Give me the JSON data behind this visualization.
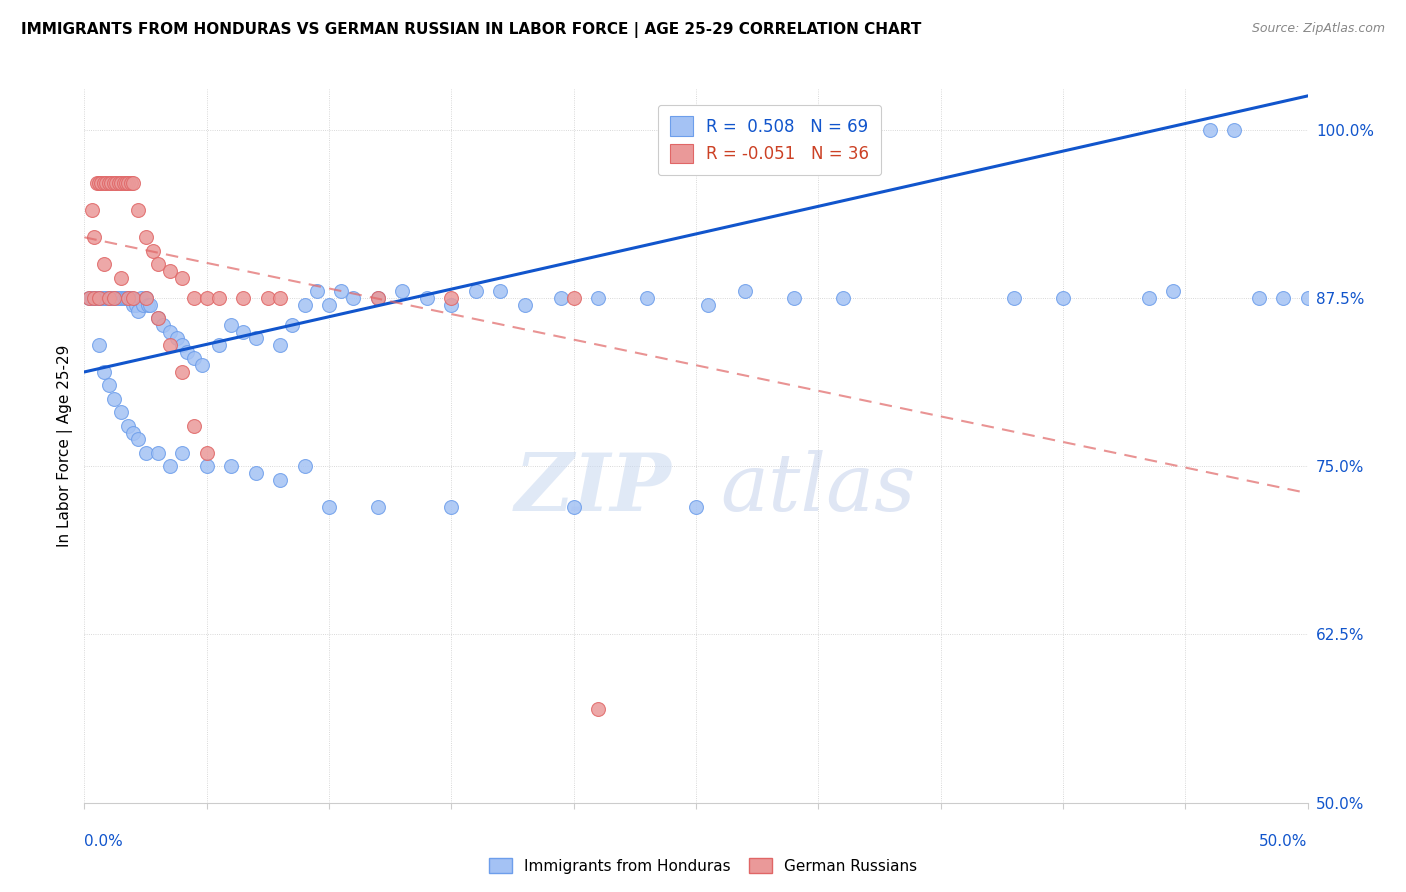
{
  "title": "IMMIGRANTS FROM HONDURAS VS GERMAN RUSSIAN IN LABOR FORCE | AGE 25-29 CORRELATION CHART",
  "source": "Source: ZipAtlas.com",
  "ylabel": "In Labor Force | Age 25-29",
  "ylabel_ticks": [
    "100.0%",
    "87.5%",
    "75.0%",
    "62.5%",
    "50.0%"
  ],
  "ylabel_vals": [
    1.0,
    0.875,
    0.75,
    0.625,
    0.5
  ],
  "xmin": 0.0,
  "xmax": 0.5,
  "ymin": 0.5,
  "ymax": 1.03,
  "blue_R": "0.508",
  "blue_N": "69",
  "pink_R": "-0.051",
  "pink_N": "36",
  "blue_color": "#a4c2f4",
  "pink_color": "#ea9999",
  "blue_edge_color": "#6d9eeb",
  "pink_edge_color": "#e06666",
  "blue_line_color": "#1155cc",
  "pink_line_color": "#e06666",
  "watermark_zip": "ZIP",
  "watermark_atlas": "atlas",
  "legend_label_blue": "Immigrants from Honduras",
  "legend_label_pink": "German Russians",
  "blue_scatter_x": [
    0.002,
    0.003,
    0.004,
    0.005,
    0.006,
    0.007,
    0.008,
    0.009,
    0.01,
    0.011,
    0.012,
    0.013,
    0.014,
    0.015,
    0.016,
    0.017,
    0.018,
    0.019,
    0.02,
    0.021,
    0.022,
    0.023,
    0.024,
    0.025,
    0.026,
    0.027,
    0.03,
    0.032,
    0.035,
    0.038,
    0.04,
    0.042,
    0.045,
    0.048,
    0.055,
    0.06,
    0.065,
    0.07,
    0.08,
    0.085,
    0.09,
    0.095,
    0.1,
    0.105,
    0.11,
    0.12,
    0.13,
    0.14,
    0.15,
    0.16,
    0.17,
    0.18,
    0.195,
    0.21,
    0.23,
    0.255,
    0.27,
    0.29,
    0.31,
    0.38,
    0.4,
    0.435,
    0.445,
    0.46,
    0.47,
    0.48,
    0.49,
    0.5
  ],
  "blue_scatter_y": [
    0.875,
    0.875,
    0.875,
    0.875,
    0.875,
    0.875,
    0.875,
    0.875,
    0.875,
    0.875,
    0.875,
    0.875,
    0.875,
    0.875,
    0.875,
    0.875,
    0.875,
    0.875,
    0.87,
    0.87,
    0.865,
    0.875,
    0.87,
    0.875,
    0.87,
    0.87,
    0.86,
    0.855,
    0.85,
    0.845,
    0.84,
    0.835,
    0.83,
    0.825,
    0.84,
    0.855,
    0.85,
    0.845,
    0.84,
    0.855,
    0.87,
    0.88,
    0.87,
    0.88,
    0.875,
    0.875,
    0.88,
    0.875,
    0.87,
    0.88,
    0.88,
    0.87,
    0.875,
    0.875,
    0.875,
    0.87,
    0.88,
    0.875,
    0.875,
    0.875,
    0.875,
    0.875,
    0.88,
    1.0,
    1.0,
    0.875,
    0.875,
    0.875
  ],
  "blue_scatter_x2": [
    0.006,
    0.008,
    0.01,
    0.012,
    0.015,
    0.018,
    0.02,
    0.022,
    0.025,
    0.03,
    0.035,
    0.04,
    0.05,
    0.06,
    0.07,
    0.08,
    0.09,
    0.1,
    0.12,
    0.15,
    0.2,
    0.25
  ],
  "blue_scatter_y2": [
    0.84,
    0.82,
    0.81,
    0.8,
    0.79,
    0.78,
    0.775,
    0.77,
    0.76,
    0.76,
    0.75,
    0.76,
    0.75,
    0.75,
    0.745,
    0.74,
    0.75,
    0.72,
    0.72,
    0.72,
    0.72,
    0.72
  ],
  "pink_scatter_x": [
    0.002,
    0.003,
    0.004,
    0.005,
    0.006,
    0.007,
    0.008,
    0.009,
    0.01,
    0.011,
    0.012,
    0.013,
    0.014,
    0.015,
    0.016,
    0.017,
    0.018,
    0.019,
    0.02,
    0.022,
    0.025,
    0.028,
    0.03,
    0.035,
    0.04,
    0.045,
    0.05,
    0.055,
    0.065,
    0.075,
    0.08,
    0.12,
    0.15,
    0.2,
    0.21
  ],
  "pink_scatter_y": [
    0.875,
    0.94,
    0.92,
    0.96,
    0.96,
    0.96,
    0.96,
    0.96,
    0.96,
    0.96,
    0.96,
    0.96,
    0.96,
    0.96,
    0.96,
    0.96,
    0.96,
    0.96,
    0.96,
    0.94,
    0.92,
    0.91,
    0.9,
    0.895,
    0.89,
    0.875,
    0.875,
    0.875,
    0.875,
    0.875,
    0.875,
    0.875,
    0.875,
    0.875,
    0.57
  ],
  "pink_scatter_x2": [
    0.004,
    0.006,
    0.008,
    0.01,
    0.012,
    0.015,
    0.018,
    0.02,
    0.025,
    0.03,
    0.035,
    0.04,
    0.045,
    0.05
  ],
  "pink_scatter_y2": [
    0.875,
    0.875,
    0.9,
    0.875,
    0.875,
    0.89,
    0.875,
    0.875,
    0.875,
    0.86,
    0.84,
    0.82,
    0.78,
    0.76
  ],
  "blue_trend_x": [
    0.0,
    0.5
  ],
  "blue_trend_y": [
    0.82,
    1.025
  ],
  "pink_trend_x": [
    0.0,
    0.5
  ],
  "pink_trend_y": [
    0.92,
    0.73
  ]
}
